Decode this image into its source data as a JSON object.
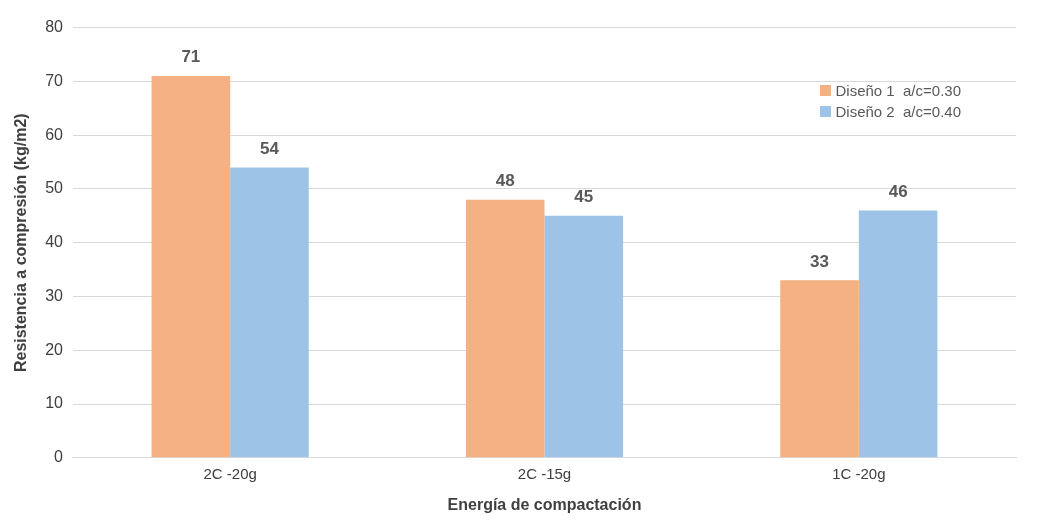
{
  "chart_data": {
    "type": "bar",
    "xlabel": "Energía de compactación",
    "ylabel": "Resistencia a compresión (kg/m2)",
    "categories": [
      "2C -20g",
      "2C -15g",
      "1C -20g"
    ],
    "series": [
      {
        "name": "Diseño 1  a/c=0.30",
        "color": "#f4b183",
        "values": [
          71,
          48,
          33
        ]
      },
      {
        "name": "Diseño 2  a/c=0.40",
        "color": "#9dc3e6",
        "values": [
          54,
          45,
          46
        ]
      }
    ],
    "ylim": [
      0,
      80
    ],
    "yticks": [
      0,
      10,
      20,
      30,
      40,
      50,
      60,
      70,
      80
    ],
    "grid": "y",
    "legend": "top right",
    "data_labels": true
  }
}
